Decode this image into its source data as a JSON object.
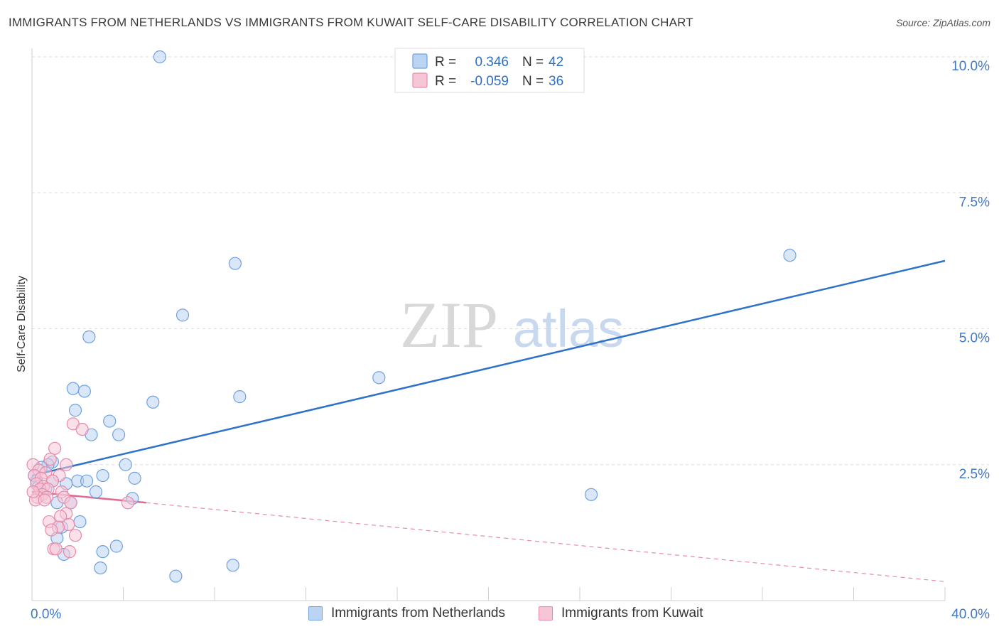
{
  "title": "IMMIGRANTS FROM NETHERLANDS VS IMMIGRANTS FROM KUWAIT SELF-CARE DISABILITY CORRELATION CHART",
  "source": "Source: ZipAtlas.com",
  "watermark": {
    "zip": "ZIP",
    "atlas": "atlas"
  },
  "stats": [
    {
      "r_label": "R =",
      "r_value": "0.346",
      "n_label": "N =",
      "n_value": "42"
    },
    {
      "r_label": "R =",
      "r_value": "-0.059",
      "n_label": "N =",
      "n_value": "36"
    }
  ],
  "chart_data": {
    "type": "scatter",
    "ylabel": "Self-Care Disability",
    "x_tick_labels": [
      "0.0%",
      "40.0%"
    ],
    "y_tick_labels": [
      "2.5%",
      "5.0%",
      "7.5%",
      "10.0%"
    ],
    "y_ticks": [
      2.5,
      5.0,
      7.5,
      10.0
    ],
    "xlim": [
      0,
      40
    ],
    "ylim": [
      0,
      10.5
    ],
    "grid": true,
    "legend_position": "bottom",
    "series": [
      {
        "name": "Immigrants from Netherlands",
        "color": "#6fa1e0",
        "fill": "#bcd4f3",
        "points": [
          [
            5.6,
            10.0
          ],
          [
            8.9,
            6.2
          ],
          [
            33.2,
            6.35
          ],
          [
            6.6,
            5.25
          ],
          [
            2.5,
            4.85
          ],
          [
            15.2,
            4.1
          ],
          [
            1.8,
            3.9
          ],
          [
            2.3,
            3.85
          ],
          [
            9.1,
            3.75
          ],
          [
            5.3,
            3.65
          ],
          [
            1.9,
            3.5
          ],
          [
            3.4,
            3.3
          ],
          [
            2.6,
            3.05
          ],
          [
            3.8,
            3.05
          ],
          [
            0.9,
            2.55
          ],
          [
            0.7,
            2.5
          ],
          [
            4.1,
            2.5
          ],
          [
            0.4,
            2.45
          ],
          [
            0.1,
            2.3
          ],
          [
            3.1,
            2.3
          ],
          [
            0.2,
            2.2
          ],
          [
            4.5,
            2.25
          ],
          [
            0.9,
            2.2
          ],
          [
            2.0,
            2.2
          ],
          [
            2.4,
            2.2
          ],
          [
            1.5,
            2.15
          ],
          [
            0.3,
            2.1
          ],
          [
            0.6,
            2.05
          ],
          [
            2.8,
            2.0
          ],
          [
            4.4,
            1.88
          ],
          [
            24.5,
            1.95
          ],
          [
            1.1,
            1.8
          ],
          [
            1.7,
            1.8
          ],
          [
            2.1,
            1.45
          ],
          [
            1.3,
            1.35
          ],
          [
            1.1,
            1.15
          ],
          [
            3.7,
            1.0
          ],
          [
            3.1,
            0.9
          ],
          [
            1.4,
            0.85
          ],
          [
            3.0,
            0.6
          ],
          [
            8.8,
            0.65
          ],
          [
            6.3,
            0.45
          ]
        ],
        "trend": {
          "x": [
            0,
            40
          ],
          "y": [
            2.3,
            6.25
          ]
        }
      },
      {
        "name": "Immigrants from Kuwait",
        "color": "#e88aab",
        "fill": "#f6c6d6",
        "points": [
          [
            0.05,
            2.5
          ],
          [
            1.8,
            3.25
          ],
          [
            2.2,
            3.15
          ],
          [
            1.0,
            2.8
          ],
          [
            0.8,
            2.6
          ],
          [
            1.5,
            2.5
          ],
          [
            0.3,
            2.4
          ],
          [
            0.6,
            2.35
          ],
          [
            0.1,
            2.3
          ],
          [
            1.2,
            2.3
          ],
          [
            0.4,
            2.25
          ],
          [
            0.2,
            2.15
          ],
          [
            0.9,
            2.2
          ],
          [
            0.5,
            2.1
          ],
          [
            0.35,
            2.05
          ],
          [
            0.7,
            2.05
          ],
          [
            1.3,
            2.0
          ],
          [
            0.45,
            1.95
          ],
          [
            0.25,
            1.9
          ],
          [
            0.65,
            1.9
          ],
          [
            1.4,
            1.9
          ],
          [
            0.15,
            1.85
          ],
          [
            0.55,
            1.85
          ],
          [
            1.7,
            1.8
          ],
          [
            4.2,
            1.8
          ],
          [
            1.5,
            1.6
          ],
          [
            1.25,
            1.55
          ],
          [
            0.75,
            1.45
          ],
          [
            1.6,
            1.4
          ],
          [
            1.15,
            1.35
          ],
          [
            0.85,
            1.3
          ],
          [
            1.9,
            1.2
          ],
          [
            0.95,
            0.95
          ],
          [
            1.05,
            0.95
          ],
          [
            1.65,
            0.9
          ],
          [
            0.05,
            2.0
          ]
        ],
        "trend": {
          "x": [
            0,
            5
          ],
          "y": [
            2.0,
            1.8
          ]
        },
        "trend_extended": {
          "x": [
            5,
            40
          ],
          "y": [
            1.8,
            0.35
          ]
        }
      }
    ]
  }
}
